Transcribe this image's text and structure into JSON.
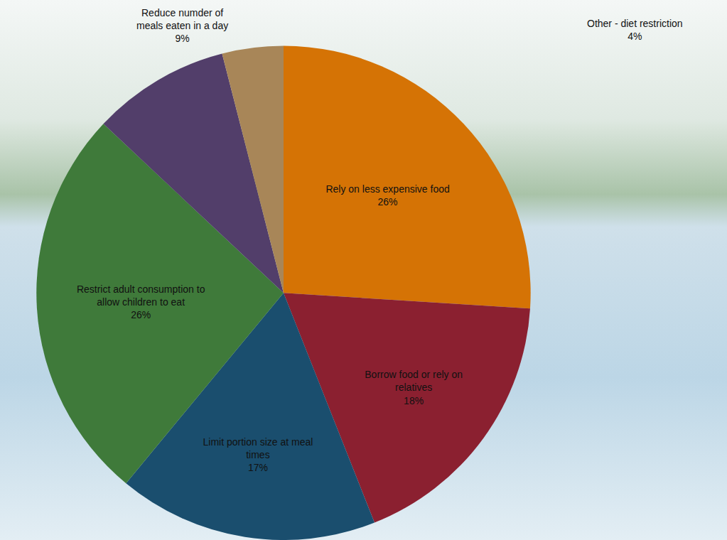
{
  "chart_data": {
    "type": "pie",
    "categories": [
      "Rely on less expensive food",
      "Borrow food or rely on relatives",
      "Limit portion size at meal times",
      "Restrict adult consumption to allow children to eat",
      "Reduce numder of meals eaten in a day",
      "Other - diet restriction"
    ],
    "values": [
      26,
      18,
      17,
      26,
      9,
      4
    ],
    "value_labels": [
      "26%",
      "18%",
      "17%",
      "26%",
      "9%",
      "4%"
    ],
    "colors": [
      "#d57305",
      "#8b2030",
      "#1a4e6e",
      "#3f7a3a",
      "#523e6a",
      "#a88658"
    ],
    "data_labels": true
  }
}
